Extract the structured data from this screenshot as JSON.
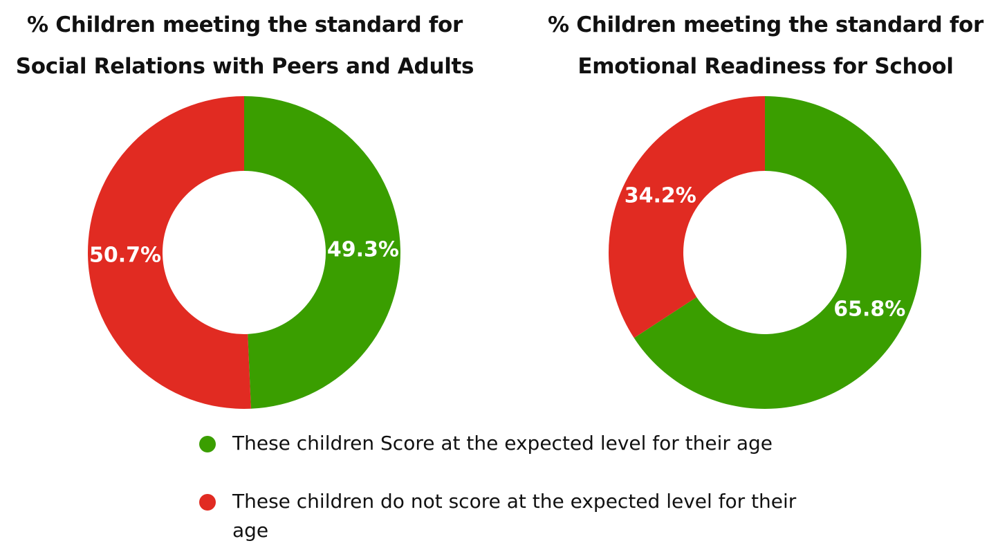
{
  "colors": {
    "meets": "#3a9e00",
    "not_meets": "#e12b22"
  },
  "chart_data": [
    {
      "type": "pie",
      "title_lines": [
        "% Children meeting the standard for",
        "Social Relations with Peers and Adults"
      ],
      "slices": [
        {
          "series": "meets",
          "value": 49.3,
          "label": "49.3%"
        },
        {
          "series": "not_meets",
          "value": 50.7,
          "label": "50.7%"
        }
      ]
    },
    {
      "type": "pie",
      "title_lines": [
        "% Children meeting the standard for",
        "Emotional Readiness for School"
      ],
      "slices": [
        {
          "series": "meets",
          "value": 65.8,
          "label": "65.8%"
        },
        {
          "series": "not_meets",
          "value": 34.2,
          "label": "34.2%"
        }
      ]
    }
  ],
  "legend": {
    "items": [
      {
        "series": "meets",
        "label": "These children Score at the expected level for their age"
      },
      {
        "series": "not_meets",
        "label": "These children do not score at the expected level for their age"
      }
    ]
  }
}
